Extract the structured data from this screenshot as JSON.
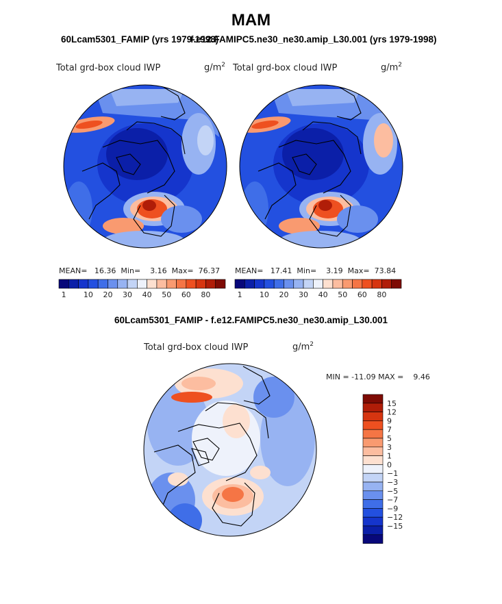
{
  "figure": {
    "season": "MAM",
    "diff_title": "60Lcam5301_FAMIP - f.e12.FAMIPC5.ne30_ne30.amip_L30.001"
  },
  "panels": [
    {
      "run_title": "60Lcam5301_FAMIP (yrs 1979-1998)",
      "field_label": "Total grd-box cloud IWP",
      "units": "g/m",
      "units_sup": "2",
      "mean_label": "MEAN=",
      "mean": "16.36",
      "min_label": "Min=",
      "min": "3.16",
      "max_label": "Max=",
      "max": "76.37"
    },
    {
      "run_title": "f.e12.FAMIPC5.ne30_ne30.amip_L30.001 (yrs 1979-1998)",
      "field_label": "Total grd-box cloud IWP",
      "units": "g/m",
      "units_sup": "2",
      "mean_label": "MEAN=",
      "mean": "17.41",
      "min_label": "Min=",
      "min": "3.19",
      "max_label": "Max=",
      "max": "73.84"
    }
  ],
  "diff_panel": {
    "field_label": "Total grd-box cloud IWP",
    "units": "g/m",
    "units_sup": "2",
    "minmax_text": "MIN = -11.09 MAX =    9.46"
  },
  "abs_colorbar": {
    "colors": [
      "#08087a",
      "#0b1fa8",
      "#1535cc",
      "#2350e0",
      "#3f6ee8",
      "#6a90ee",
      "#97b3f2",
      "#c3d4f6",
      "#eef2fb",
      "#fde0d0",
      "#fcbda0",
      "#f99a70",
      "#f57545",
      "#ee5020",
      "#d63510",
      "#b01d08",
      "#7e0b04"
    ],
    "labels": [
      "1",
      "10",
      "20",
      "30",
      "40",
      "50",
      "60",
      "80"
    ]
  },
  "diff_colorbar": {
    "colors": [
      "#7e0b04",
      "#b01d08",
      "#d63510",
      "#ee5020",
      "#f57545",
      "#f99a70",
      "#fcbda0",
      "#fde0d0",
      "#eef2fb",
      "#c3d4f6",
      "#97b3f2",
      "#6a90ee",
      "#3f6ee8",
      "#2350e0",
      "#1535cc",
      "#0b1fa8",
      "#08087a"
    ],
    "labels": [
      "15",
      "12",
      "9",
      "7",
      "5",
      "3",
      "1",
      "0",
      "−1",
      "−3",
      "−5",
      "−7",
      "−9",
      "−12",
      "−15"
    ]
  }
}
